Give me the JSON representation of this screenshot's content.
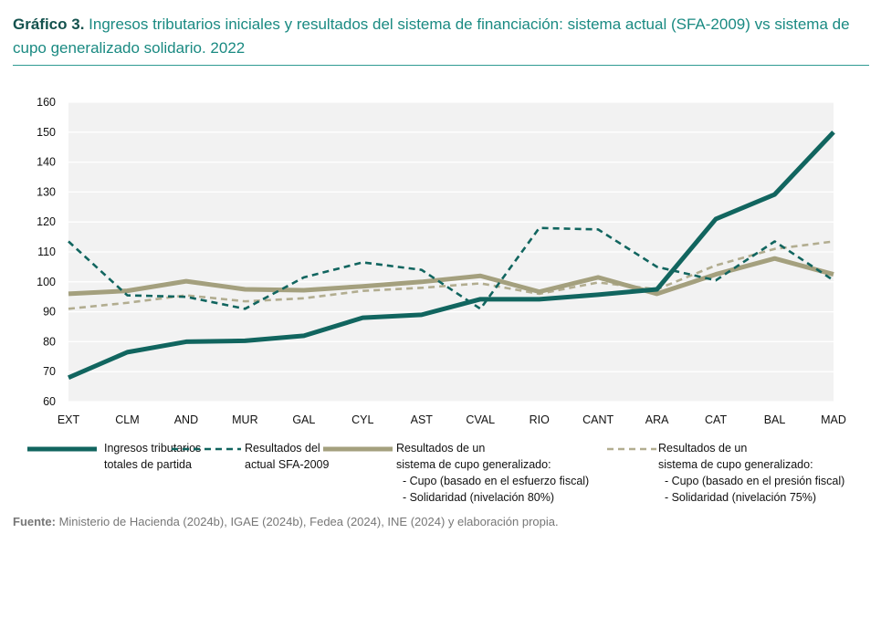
{
  "title": {
    "prefix": "Gráfico 3.",
    "line1": "Ingresos tributarios iniciales y resultados del sistema de financiación: sistema actual (SFA-2009) vs sistema de",
    "line2": "cupo generalizado solidario. 2022"
  },
  "colors": {
    "ingresos": "#11655f",
    "sfa": "#11655f",
    "cupo80": "#a4a07e",
    "cupo75": "#b2ad90",
    "plot_bg": "#f2f2f2",
    "grid": "#ffffff",
    "title_accent": "#1a8a82"
  },
  "chart_data": {
    "type": "line",
    "title": "",
    "xlabel": "",
    "ylabel": "",
    "ylim": [
      60,
      160
    ],
    "yticks": [
      60,
      70,
      80,
      90,
      100,
      110,
      120,
      130,
      140,
      150,
      160
    ],
    "categories": [
      "EXT",
      "CLM",
      "AND",
      "MUR",
      "GAL",
      "CYL",
      "AST",
      "CVAL",
      "RIO",
      "CANT",
      "ARA",
      "CAT",
      "BAL",
      "MAD"
    ],
    "series": [
      {
        "key": "ingresos",
        "name": "Ingresos tributarios totales de partida",
        "style": "solid-thick",
        "values": [
          68,
          76.5,
          80,
          80.3,
          82,
          88,
          89,
          94.2,
          94.2,
          95.7,
          97.5,
          121,
          129.2,
          150
        ]
      },
      {
        "key": "sfa",
        "name": "Resultados del actual SFA-2009",
        "style": "dashed",
        "values": [
          113.5,
          95.5,
          95,
          91,
          101.5,
          106.5,
          104,
          91,
          118,
          117.5,
          105,
          100.5,
          113.5,
          100.5
        ]
      },
      {
        "key": "cupo80",
        "name": "Resultados de un sistema de cupo generalizado: - Cupo (basado en el esfuerzo fiscal) - Solidaridad (nivelación 80%)",
        "style": "solid-thick",
        "values": [
          96,
          97,
          100.2,
          97.5,
          97.2,
          98.5,
          100,
          102,
          96.7,
          101.5,
          96,
          102.5,
          107.8,
          102.5
        ]
      },
      {
        "key": "cupo75",
        "name": "Resultados de un sistema de cupo generalizado: - Cupo (basado en el presión fiscal) - Solidaridad (nivelación 75%)",
        "style": "dashed",
        "values": [
          91,
          93,
          95.5,
          93.5,
          94.5,
          97,
          98,
          99.5,
          96,
          99.8,
          97.5,
          105.5,
          111,
          113.5
        ]
      }
    ]
  },
  "legend": {
    "ingresos": [
      "Ingresos tributarios",
      "totales de partida"
    ],
    "sfa": [
      "Resultados del",
      "actual SFA-2009"
    ],
    "cupo80": [
      "Resultados de un",
      "sistema de cupo generalizado:",
      "  - Cupo (basado en el esfuerzo fiscal)",
      "  - Solidaridad (nivelación 80%)"
    ],
    "cupo75": [
      "Resultados de un",
      "sistema de cupo generalizado:",
      "  - Cupo (basado en el presión fiscal)",
      "  - Solidaridad (nivelación 75%)"
    ]
  },
  "source": {
    "label": "Fuente:",
    "text": " Ministerio de Hacienda (2024b), IGAE (2024b), Fedea (2024), INE (2024) y elaboración propia."
  }
}
